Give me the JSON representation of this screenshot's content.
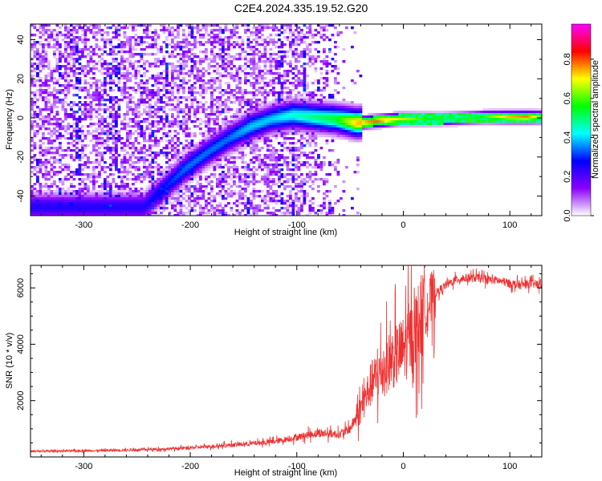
{
  "title": "C2E4.2024.335.19.52.G20",
  "chart_data": [
    {
      "type": "heatmap",
      "xlabel": "Height of straight line (km)",
      "ylabel": "Frequency (Hz)",
      "xlim": [
        -350,
        130
      ],
      "ylim": [
        -50,
        48
      ],
      "xticks": [
        -300,
        -200,
        -100,
        0,
        100
      ],
      "yticks": [
        -40,
        -20,
        0,
        20,
        40
      ],
      "colorbar": {
        "label": "Normalized spectral amplitude",
        "range": [
          0,
          0.98
        ],
        "ticks": [
          "0.0",
          "0.2",
          "0.4",
          "0.6",
          "0.8"
        ],
        "colors": [
          "#ffffff",
          "#8a00ff",
          "#0000ff",
          "#00ffff",
          "#00ff00",
          "#ffff00",
          "#ff0000",
          "#ff00ff"
        ]
      },
      "ridge": {
        "x": [
          -245,
          -225,
          -205,
          -185,
          -165,
          -145,
          -125,
          -105,
          -85,
          -65,
          -45,
          -25,
          -5,
          15,
          35,
          55,
          75,
          95,
          115,
          130
        ],
        "y": [
          -45,
          -35,
          -25,
          -17,
          -10,
          -4,
          0,
          2,
          1,
          0,
          -2,
          -1,
          0,
          0,
          0,
          0.5,
          1,
          1,
          1,
          1
        ],
        "amplitude": [
          0.25,
          0.3,
          0.35,
          0.35,
          0.35,
          0.4,
          0.4,
          0.45,
          0.5,
          0.55,
          0.75,
          0.8,
          0.7,
          0.6,
          0.5,
          0.55,
          0.6,
          0.75,
          0.8,
          0.6
        ]
      }
    },
    {
      "type": "line",
      "xlabel": "Height of straight line (km)",
      "ylabel": "SNR (10 * v/v)",
      "xlim": [
        -350,
        130
      ],
      "ylim": [
        0,
        6800
      ],
      "xticks": [
        -300,
        -200,
        -100,
        0,
        100
      ],
      "yticks": [
        2000,
        4000,
        6000
      ],
      "color": "#f03030",
      "series": [
        {
          "x": [
            -350,
            -300,
            -250,
            -200,
            -180,
            -150,
            -120,
            -100,
            -80,
            -60,
            -50,
            -40,
            -30,
            -20,
            -10,
            0,
            10,
            20,
            30,
            40,
            50,
            60,
            70,
            80,
            90,
            100,
            110,
            120,
            130
          ],
          "y": [
            200,
            220,
            250,
            320,
            380,
            450,
            550,
            700,
            850,
            800,
            1000,
            1700,
            2600,
            3100,
            3500,
            3800,
            4400,
            5200,
            5800,
            6100,
            6300,
            6350,
            6350,
            6300,
            6250,
            6150,
            6100,
            6150,
            6100
          ]
        }
      ]
    }
  ]
}
